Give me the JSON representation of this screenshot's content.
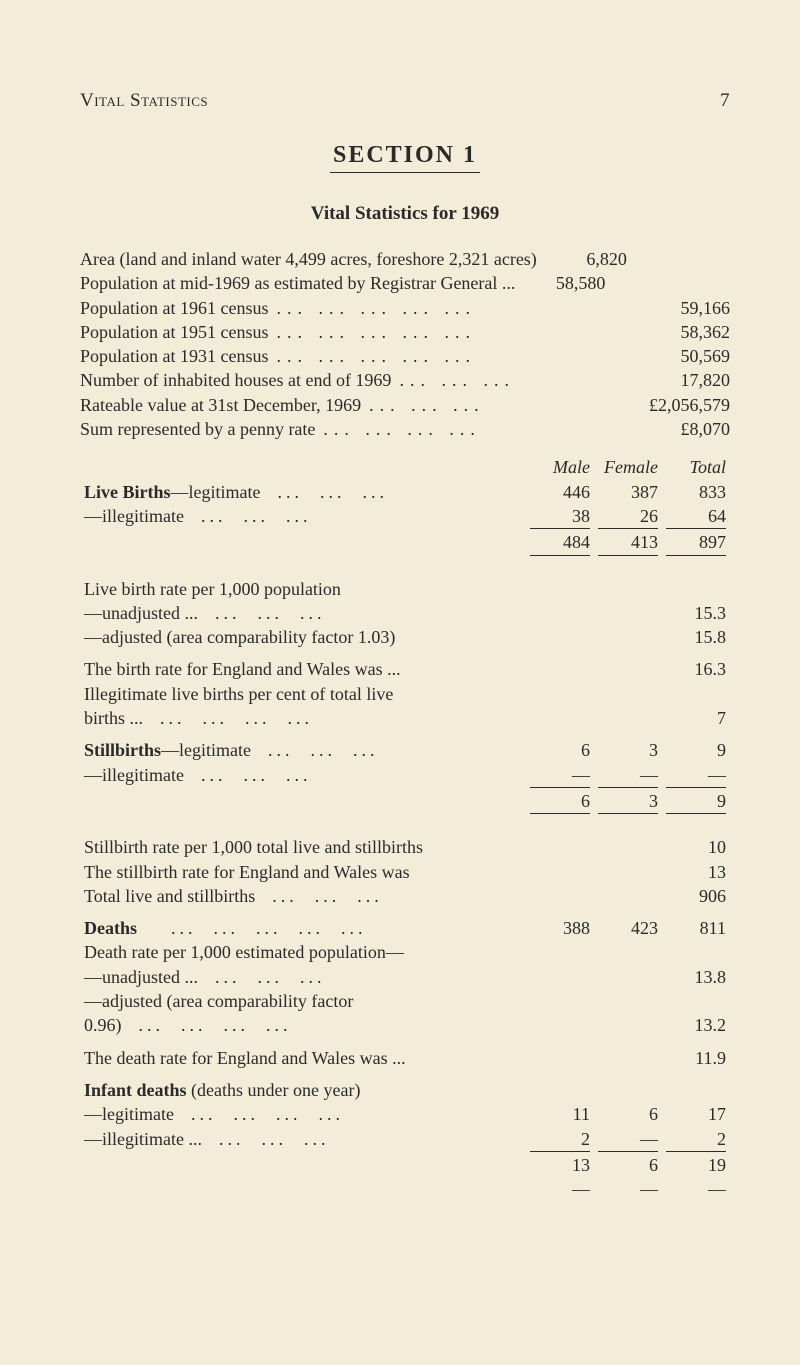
{
  "page": {
    "running_title": "Vital Statistics",
    "page_number": "7",
    "section_title": "SECTION  1",
    "sub_title": "Vital Statistics for 1969"
  },
  "area_block": {
    "lines": [
      {
        "label": "Area (land and inland water 4,499 acres, foreshore 2,321 acres)",
        "value": "6,820"
      },
      {
        "label": "Population at mid-1969 as estimated by Registrar General  ...",
        "value": "58,580"
      },
      {
        "label": "Population at 1961 census",
        "value": "59,166"
      },
      {
        "label": "Population at 1951 census",
        "value": "58,362"
      },
      {
        "label": "Population at 1931 census",
        "value": "50,569"
      },
      {
        "label": "Number of inhabited houses at end of 1969",
        "value": "17,820"
      },
      {
        "label": "Rateable value at 31st December, 1969",
        "value": "£2,056,579"
      },
      {
        "label": "Sum represented by a penny rate",
        "value": "£8,070"
      }
    ]
  },
  "col_headers": {
    "male": "Male",
    "female": "Female",
    "total": "Total"
  },
  "live_births": {
    "title": "Live Births",
    "rows": [
      {
        "label": "—legitimate",
        "m": "446",
        "f": "387",
        "t": "833"
      },
      {
        "label": "—illegitimate",
        "m": "38",
        "f": "26",
        "t": "64"
      }
    ],
    "sum": {
      "m": "484",
      "f": "413",
      "t": "897"
    }
  },
  "live_birth_rate": {
    "heading": "Live birth rate per 1,000 population",
    "unadj_label": "—unadjusted ...",
    "unadj_val": "15.3",
    "adj_label": "—adjusted (area comparability factor 1.03)",
    "adj_val": "15.8",
    "eng_label": "The birth rate for England and Wales was  ...",
    "eng_val": "16.3",
    "illeg_label1": "Illegitimate live births per cent of total live",
    "illeg_label2": "births  ...",
    "illeg_val": "7"
  },
  "stillbirths": {
    "title": "Stillbirths",
    "rows": [
      {
        "label": "—legitimate",
        "m": "6",
        "f": "3",
        "t": "9"
      },
      {
        "label": "—illegitimate",
        "m": "—",
        "f": "—",
        "t": "—"
      }
    ],
    "sum": {
      "m": "6",
      "f": "3",
      "t": "9"
    }
  },
  "stillbirth_rate": {
    "l1": "Stillbirth rate per 1,000 total live and stillbirths",
    "v1": "10",
    "l2": "The stillbirth rate for England and Wales was",
    "v2": "13",
    "l3": "Total live and stillbirths",
    "v3": "906"
  },
  "deaths": {
    "title": "Deaths",
    "m": "388",
    "f": "423",
    "t": "811",
    "rate_heading": "Death rate per 1,000 estimated population—",
    "unadj_label": "—unadjusted ...",
    "unadj_val": "13.8",
    "adj_label1": "—adjusted (area comparability factor",
    "adj_label2": "0.96)",
    "adj_val": "13.2",
    "eng_label": "The death rate for England and Wales was  ...",
    "eng_val": "11.9"
  },
  "infant": {
    "heading": "Infant deaths",
    "sub": "(deaths under one year)",
    "rows": [
      {
        "label": "—legitimate",
        "m": "11",
        "f": "6",
        "t": "17"
      },
      {
        "label": "—illegitimate ...",
        "m": "2",
        "f": "—",
        "t": "2"
      }
    ],
    "sum": {
      "m": "13",
      "f": "6",
      "t": "19"
    },
    "dash": {
      "m": "—",
      "f": "—",
      "t": "—"
    }
  }
}
